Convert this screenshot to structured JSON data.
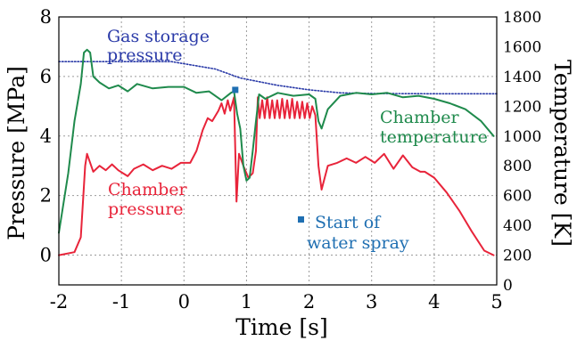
{
  "chart_data": {
    "type": "line",
    "xlabel": "Time [s]",
    "ylabel_left": "Pressure [MPa]",
    "ylabel_right": "Temperature [K]",
    "xlim": [
      -2,
      5
    ],
    "ylim_left": [
      -1,
      8
    ],
    "ylim_right": [
      0,
      1800
    ],
    "x_ticks": [
      "-2",
      "-1",
      "0",
      "1",
      "2",
      "3",
      "4",
      "5"
    ],
    "y_left_ticks": [
      "0",
      "2",
      "4",
      "6",
      "8"
    ],
    "y_right_ticks": [
      "0",
      "200",
      "400",
      "600",
      "800",
      "1000",
      "1200",
      "1400",
      "1600",
      "1800"
    ],
    "grid": "dotted",
    "colors": {
      "gas_storage": "#2a3aa8",
      "chamber_pressure": "#e8243a",
      "chamber_temperature": "#1f8a4c",
      "water_spray": "#1f6fb2"
    },
    "series": [
      {
        "name": "Gas storage pressure",
        "axis": "left",
        "style": "dotted",
        "x": [
          -2.0,
          -0.2,
          0.5,
          0.9,
          1.5,
          2.0,
          2.5,
          3.0,
          4.0,
          5.0
        ],
        "y": [
          6.5,
          6.5,
          6.25,
          5.95,
          5.7,
          5.55,
          5.45,
          5.43,
          5.42,
          5.42
        ]
      },
      {
        "name": "Chamber pressure",
        "axis": "left",
        "x": [
          -2.0,
          -1.75,
          -1.65,
          -1.58,
          -1.55,
          -1.45,
          -1.35,
          -1.25,
          -1.15,
          -1.05,
          -0.9,
          -0.8,
          -0.65,
          -0.5,
          -0.35,
          -0.2,
          -0.05,
          0.1,
          0.2,
          0.3,
          0.38,
          0.45,
          0.55,
          0.6,
          0.65,
          0.7,
          0.74,
          0.8,
          0.84,
          0.88,
          0.95,
          1.03,
          1.1,
          1.15,
          1.18,
          1.21,
          1.25,
          1.29,
          1.33,
          1.37,
          1.41,
          1.45,
          1.49,
          1.53,
          1.57,
          1.61,
          1.65,
          1.69,
          1.73,
          1.77,
          1.81,
          1.85,
          1.89,
          1.93,
          1.97,
          2.01,
          2.05,
          2.1,
          2.15,
          2.2,
          2.3,
          2.45,
          2.6,
          2.75,
          2.9,
          3.05,
          3.2,
          3.35,
          3.5,
          3.65,
          3.78,
          3.85,
          4.0,
          4.2,
          4.4,
          4.6,
          4.8,
          4.95
        ],
        "y": [
          0.0,
          0.1,
          0.6,
          3.0,
          3.4,
          2.8,
          3.0,
          2.85,
          3.05,
          2.85,
          2.65,
          2.9,
          3.05,
          2.85,
          3.0,
          2.9,
          3.1,
          3.1,
          3.5,
          4.2,
          4.6,
          4.5,
          4.85,
          5.1,
          4.75,
          5.2,
          4.85,
          5.3,
          1.8,
          3.4,
          3.0,
          2.6,
          2.75,
          3.5,
          5.3,
          4.6,
          5.2,
          4.6,
          5.3,
          4.6,
          5.2,
          4.6,
          5.2,
          4.6,
          5.25,
          4.6,
          5.2,
          4.6,
          5.25,
          4.6,
          5.15,
          4.6,
          5.15,
          4.6,
          5.1,
          4.6,
          5.0,
          4.7,
          3.0,
          2.2,
          3.0,
          3.1,
          3.25,
          3.1,
          3.3,
          3.1,
          3.4,
          2.9,
          3.35,
          2.95,
          2.8,
          2.8,
          2.6,
          2.1,
          1.5,
          0.8,
          0.15,
          0.0
        ]
      },
      {
        "name": "Chamber temperature",
        "axis": "right",
        "x": [
          -2.0,
          -1.85,
          -1.75,
          -1.65,
          -1.6,
          -1.55,
          -1.5,
          -1.45,
          -1.35,
          -1.2,
          -1.05,
          -0.9,
          -0.75,
          -0.5,
          -0.25,
          0.0,
          0.2,
          0.4,
          0.6,
          0.75,
          0.8,
          0.85,
          0.9,
          0.95,
          1.0,
          1.05,
          1.1,
          1.15,
          1.2,
          1.3,
          1.5,
          1.75,
          2.0,
          2.1,
          2.15,
          2.2,
          2.3,
          2.5,
          2.75,
          3.0,
          3.25,
          3.5,
          3.75,
          4.0,
          4.25,
          4.5,
          4.75,
          4.95
        ],
        "y": [
          350,
          750,
          1100,
          1350,
          1560,
          1580,
          1560,
          1400,
          1360,
          1320,
          1340,
          1300,
          1350,
          1320,
          1330,
          1330,
          1290,
          1300,
          1240,
          1290,
          1300,
          1150,
          1050,
          800,
          700,
          720,
          900,
          1100,
          1280,
          1250,
          1290,
          1270,
          1280,
          1250,
          1100,
          1050,
          1180,
          1270,
          1290,
          1280,
          1290,
          1260,
          1270,
          1250,
          1220,
          1180,
          1100,
          1000
        ]
      }
    ],
    "markers": [
      {
        "name": "Start of water spray",
        "x": 0.82,
        "y": 5.55
      }
    ],
    "annotations": {
      "gas_storage_line1": "Gas storage",
      "gas_storage_line2": "pressure",
      "chamber_temperature_line1": "Chamber",
      "chamber_temperature_line2": "temperature",
      "chamber_pressure_line1": "Chamber",
      "chamber_pressure_line2": "pressure",
      "water_spray_line1": "Start  of",
      "water_spray_line2": "water spray"
    }
  }
}
